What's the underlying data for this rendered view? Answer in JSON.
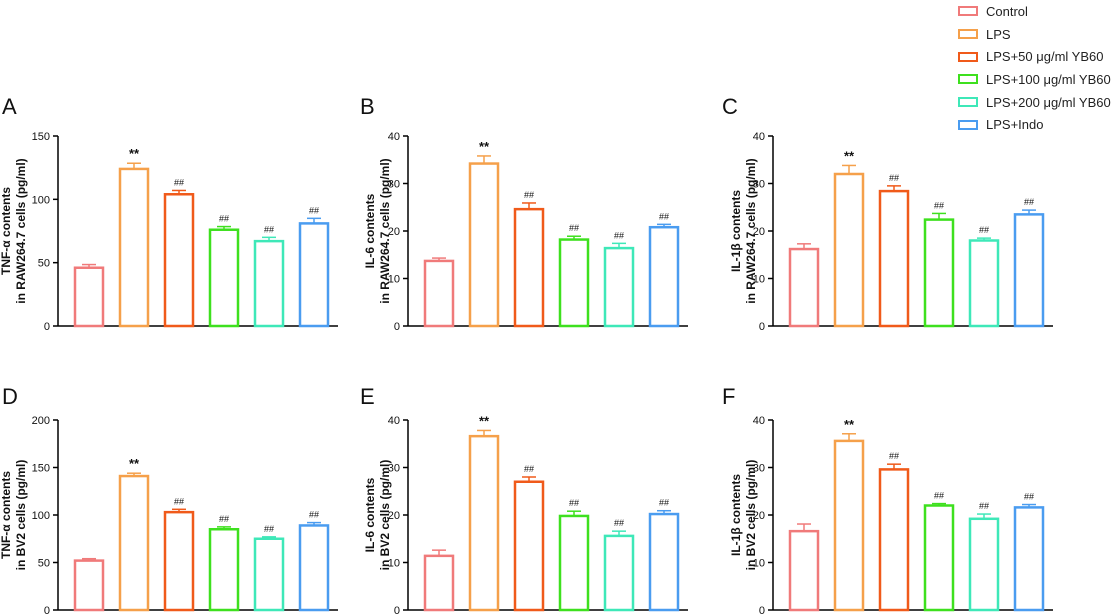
{
  "legend": {
    "items": [
      {
        "label": "Control",
        "color": "#f07a7a"
      },
      {
        "label": "LPS",
        "color": "#f5a04a"
      },
      {
        "label": "LPS+50 μg/ml YB60",
        "color": "#f05a1a"
      },
      {
        "label": "LPS+100 μg/ml YB60",
        "color": "#3ee01e"
      },
      {
        "label": "LPS+200 μg/ml YB60",
        "color": "#3ee8b8"
      },
      {
        "label": "LPS+Indo",
        "color": "#4a9cf0"
      }
    ]
  },
  "chart_data": [
    {
      "panel": "A",
      "type": "bar",
      "ylabel_line1": "TNF-α contents",
      "ylabel_line2": "in RAW264.7 cells (pg/ml)",
      "ylim": [
        0,
        150
      ],
      "yticks": [
        0,
        50,
        100,
        150
      ],
      "values": [
        46,
        124,
        104,
        76,
        67,
        81
      ],
      "errors": [
        2.5,
        4.5,
        3,
        2.5,
        3,
        4
      ],
      "annotations": [
        "",
        "**",
        "##",
        "##",
        "##",
        "##"
      ]
    },
    {
      "panel": "B",
      "type": "bar",
      "ylabel_line1": "IL-6 contents",
      "ylabel_line2": "in RAW264.7 cells (pg/ml)",
      "ylim": [
        0,
        40
      ],
      "yticks": [
        0,
        10,
        20,
        30,
        40
      ],
      "values": [
        13.7,
        34.2,
        24.6,
        18.2,
        16.4,
        20.8
      ],
      "errors": [
        0.6,
        1.6,
        1.3,
        0.7,
        1.0,
        0.6
      ],
      "annotations": [
        "",
        "**",
        "##",
        "##",
        "##",
        "##"
      ]
    },
    {
      "panel": "C",
      "type": "bar",
      "ylabel_line1": "IL-1β contents",
      "ylabel_line2": "in RAW264.7 cells (pg/ml)",
      "ylim": [
        0,
        40
      ],
      "yticks": [
        0,
        10,
        20,
        30,
        40
      ],
      "values": [
        16.2,
        32.0,
        28.4,
        22.4,
        18.0,
        23.5
      ],
      "errors": [
        1.1,
        1.8,
        1.1,
        1.3,
        0.5,
        0.9
      ],
      "annotations": [
        "",
        "**",
        "##",
        "##",
        "##",
        "##"
      ]
    },
    {
      "panel": "D",
      "type": "bar",
      "ylabel_line1": "TNF-α contents",
      "ylabel_line2": "in BV2 cells (pg/ml)",
      "ylim": [
        0,
        200
      ],
      "yticks": [
        0,
        50,
        100,
        150,
        200
      ],
      "values": [
        52,
        141,
        103,
        85,
        75,
        89
      ],
      "errors": [
        2,
        3,
        3,
        2.5,
        2,
        3
      ],
      "annotations": [
        "",
        "**",
        "##",
        "##",
        "##",
        "##"
      ]
    },
    {
      "panel": "E",
      "type": "bar",
      "ylabel_line1": "IL-6 contents",
      "ylabel_line2": "in BV2 cells (pg/ml)",
      "ylim": [
        0,
        40
      ],
      "yticks": [
        0,
        10,
        20,
        30,
        40
      ],
      "values": [
        11.4,
        36.6,
        27.0,
        19.8,
        15.6,
        20.2
      ],
      "errors": [
        1.2,
        1.2,
        1.0,
        1.0,
        1.0,
        0.7
      ],
      "annotations": [
        "",
        "**",
        "##",
        "##",
        "##",
        "##"
      ]
    },
    {
      "panel": "F",
      "type": "bar",
      "ylabel_line1": "IL-1β contents",
      "ylabel_line2": "in BV2 cells (pg/ml)",
      "ylim": [
        0,
        40
      ],
      "yticks": [
        0,
        10,
        20,
        30,
        40
      ],
      "values": [
        16.6,
        35.6,
        29.6,
        22.0,
        19.2,
        21.6
      ],
      "errors": [
        1.5,
        1.5,
        1.1,
        0.4,
        1.0,
        0.6
      ],
      "annotations": [
        "",
        "**",
        "##",
        "##",
        "##",
        "##"
      ]
    }
  ]
}
